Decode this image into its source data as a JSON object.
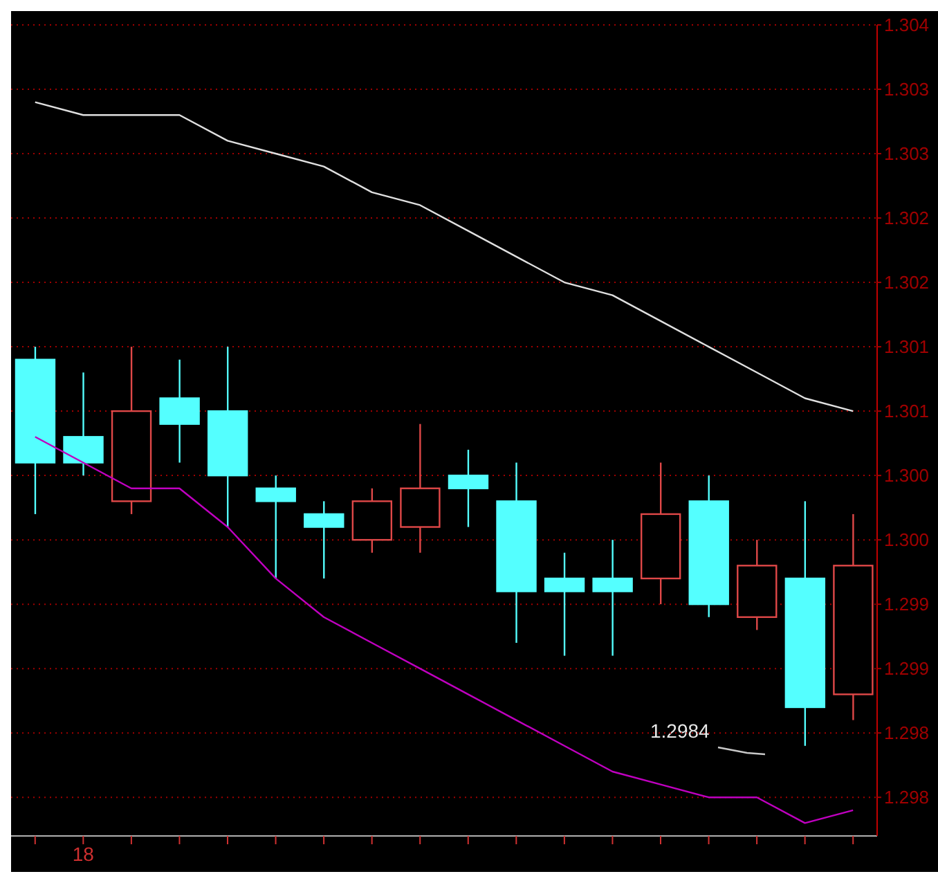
{
  "chart_data": {
    "type": "candlestick",
    "categories": [
      null,
      "18",
      null,
      null,
      null,
      null,
      null,
      null,
      null,
      null,
      null,
      null,
      null,
      null,
      null,
      null,
      null,
      null
    ],
    "ohlc": [
      [
        1.3014,
        1.3015,
        1.3002,
        1.3006
      ],
      [
        1.3008,
        1.3013,
        1.3005,
        1.3006
      ],
      [
        1.3003,
        1.3015,
        1.3002,
        1.301
      ],
      [
        1.3011,
        1.3014,
        1.3006,
        1.3009
      ],
      [
        1.301,
        1.3015,
        1.3001,
        1.3005
      ],
      [
        1.3004,
        1.3005,
        1.2997,
        1.3003
      ],
      [
        1.3002,
        1.3003,
        1.2997,
        1.3001
      ],
      [
        1.3,
        1.3004,
        1.2999,
        1.3003
      ],
      [
        1.3001,
        1.3009,
        1.2999,
        1.3004
      ],
      [
        1.3005,
        1.3007,
        1.3001,
        1.3004
      ],
      [
        1.3003,
        1.3006,
        1.2992,
        1.2996
      ],
      [
        1.2997,
        1.2999,
        1.2991,
        1.2996
      ],
      [
        1.2997,
        1.3,
        1.2991,
        1.2996
      ],
      [
        1.2997,
        1.3006,
        1.2995,
        1.3002
      ],
      [
        1.3003,
        1.3005,
        1.2994,
        1.2995
      ],
      [
        1.2994,
        1.3,
        1.2993,
        1.2998
      ],
      [
        1.2997,
        1.3003,
        1.2984,
        1.2987
      ],
      [
        1.2988,
        1.3002,
        1.2986,
        1.2998
      ]
    ],
    "colors": [
      "#54ffff",
      "#54ffff",
      "#e04848",
      "#54ffff",
      "#54ffff",
      "#54ffff",
      "#54ffff",
      "#e04848",
      "#e04848",
      "#54ffff",
      "#54ffff",
      "#54ffff",
      "#54ffff",
      "#e04848",
      "#54ffff",
      "#e04848",
      "#54ffff",
      "#e04848"
    ],
    "series": [
      {
        "type": "line",
        "color": "#e0e0e0",
        "values": [
          1.3034,
          1.3033,
          1.3033,
          1.3033,
          1.3031,
          1.303,
          1.3029,
          1.3027,
          1.3026,
          1.3024,
          1.3022,
          1.302,
          1.3019,
          1.3017,
          1.3015,
          1.3013,
          1.3011,
          1.301
        ]
      },
      {
        "type": "line",
        "color": "#c000c0",
        "values": [
          1.3008,
          1.3006,
          1.3004,
          1.3004,
          1.3001,
          1.2997,
          1.2994,
          1.2992,
          1.299,
          1.2988,
          1.2986,
          1.2984,
          1.2982,
          1.2981,
          1.298,
          1.298,
          1.2978,
          1.2979
        ]
      }
    ],
    "ylim": [
      1.2977,
      1.304
    ],
    "yticks": [
      {
        "value": 1.298,
        "label": "1.298"
      },
      {
        "value": 1.2985,
        "label": "1.298"
      },
      {
        "value": 1.299,
        "label": "1.299"
      },
      {
        "value": 1.2995,
        "label": "1.299"
      },
      {
        "value": 1.3,
        "label": "1.300"
      },
      {
        "value": 1.3005,
        "label": "1.300"
      },
      {
        "value": 1.301,
        "label": "1.301"
      },
      {
        "value": 1.3015,
        "label": "1.301"
      },
      {
        "value": 1.302,
        "label": "1.302"
      },
      {
        "value": 1.3025,
        "label": "1.302"
      },
      {
        "value": 1.303,
        "label": "1.303"
      },
      {
        "value": 1.3035,
        "label": "1.303"
      },
      {
        "value": 1.304,
        "label": "1.304"
      }
    ],
    "grid": "y",
    "annotations": [
      "1.2984"
    ]
  }
}
